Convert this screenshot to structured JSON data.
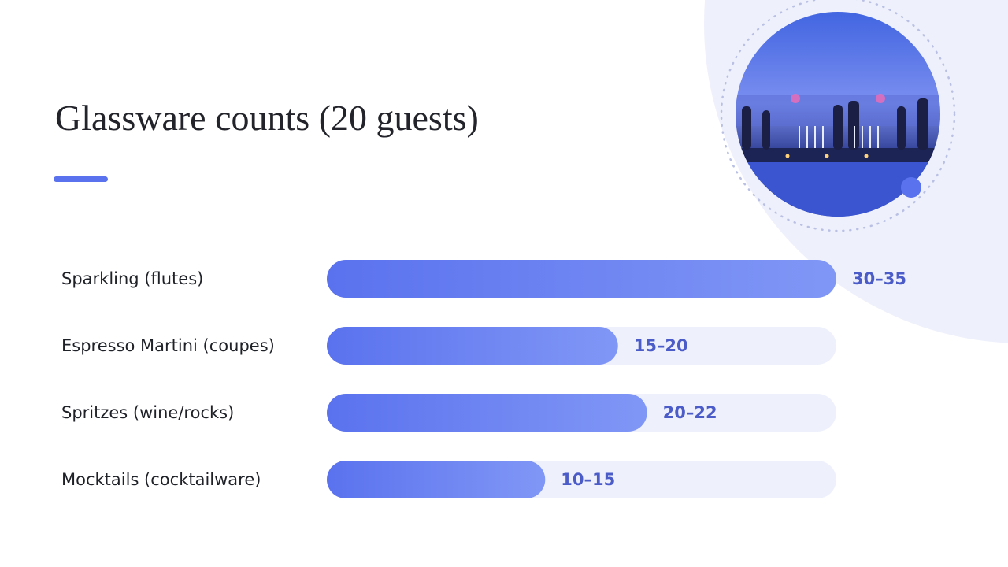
{
  "chart_data": {
    "type": "bar",
    "orientation": "horizontal",
    "title": "Glassware counts (20 guests)",
    "categories": [
      "Sparkling (flutes)",
      "Espresso Martini (coupes)",
      "Spritzes (wine/rocks)",
      "Mocktails (cocktailware)"
    ],
    "values": [
      [
        30,
        35
      ],
      [
        15,
        20
      ],
      [
        20,
        22
      ],
      [
        10,
        15
      ]
    ],
    "value_labels": [
      "30–35",
      "15–20",
      "20–22",
      "10–15"
    ],
    "color": "#5a72ee",
    "xlim": [
      0,
      35
    ]
  }
}
